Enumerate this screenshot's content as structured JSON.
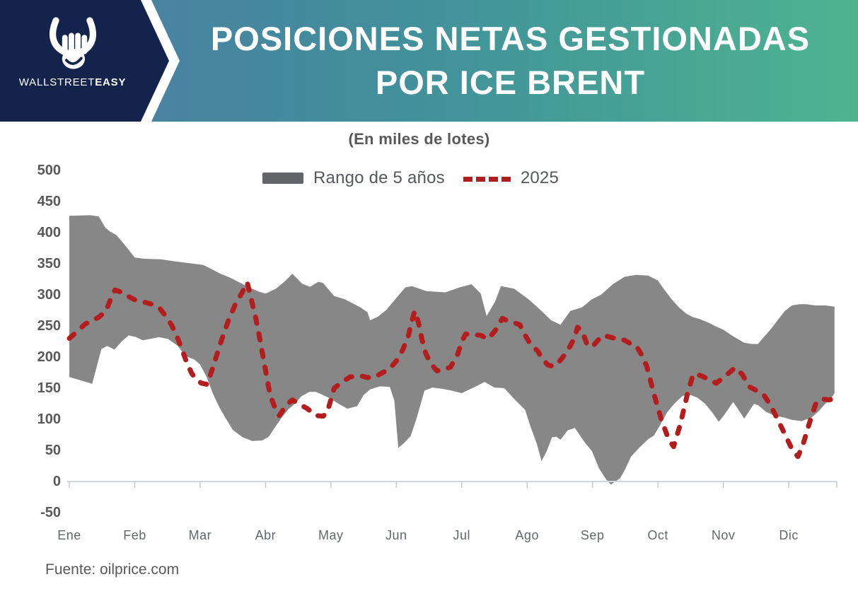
{
  "header": {
    "brand": {
      "name_regular": "WALLSTREET",
      "name_bold": "EASY"
    },
    "title_line1": "POSICIONES NETAS GESTIONADAS",
    "title_line2": "POR ICE BRENT",
    "colors": {
      "navy": "#13234c",
      "gradient_left": "#4e7ba3",
      "gradient_mid": "#41909b",
      "gradient_right": "#4db48f"
    }
  },
  "legend": {
    "range_label": "Rango de 5 años",
    "line_label": "2025"
  },
  "footer": {
    "source": "Fuente: oilprice.com"
  },
  "icons": {
    "bull-fist-logo": "bull horns over clenched fist",
    "chevron-banner": "navy chevron with white edge"
  },
  "chart_data": {
    "type": "area",
    "title": "POSICIONES NETAS GESTIONADAS POR ICE BRENT",
    "subtitle": "(En miles de lotes)",
    "x_categories": [
      "Ene",
      "Feb",
      "Mar",
      "Abr",
      "May",
      "Jun",
      "Jul",
      "Ago",
      "Sep",
      "Oct",
      "Nov",
      "Dic"
    ],
    "x_unit": "month index (0 = Ene tick, fractions = position within year)",
    "ylim": [
      -50,
      500
    ],
    "yticks": [
      500,
      450,
      400,
      350,
      300,
      250,
      200,
      150,
      100,
      50,
      0,
      -50
    ],
    "grid": "zero-line-only",
    "legend_position": "top-center",
    "series": [
      {
        "name": "Rango de 5 años",
        "type": "band",
        "color": "#878787",
        "upper": [
          [
            0,
            427
          ],
          [
            0.32,
            428
          ],
          [
            0.45,
            426
          ],
          [
            0.55,
            408
          ],
          [
            0.62,
            402
          ],
          [
            0.72,
            396
          ],
          [
            0.85,
            380
          ],
          [
            1.0,
            360
          ],
          [
            1.15,
            358
          ],
          [
            1.4,
            357
          ],
          [
            1.6,
            354
          ],
          [
            1.9,
            350
          ],
          [
            2.05,
            348
          ],
          [
            2.2,
            340
          ],
          [
            2.31,
            334
          ],
          [
            2.45,
            328
          ],
          [
            2.6,
            320
          ],
          [
            2.75,
            312
          ],
          [
            2.9,
            305
          ],
          [
            3.0,
            302
          ],
          [
            3.16,
            310
          ],
          [
            3.3,
            322
          ],
          [
            3.41,
            334
          ],
          [
            3.56,
            318
          ],
          [
            3.68,
            313
          ],
          [
            3.81,
            321
          ],
          [
            3.88,
            319
          ],
          [
            4.05,
            298
          ],
          [
            4.21,
            293
          ],
          [
            4.45,
            280
          ],
          [
            4.56,
            272
          ],
          [
            4.6,
            259
          ],
          [
            4.72,
            265
          ],
          [
            4.85,
            276
          ],
          [
            5.0,
            295
          ],
          [
            5.14,
            312
          ],
          [
            5.24,
            314
          ],
          [
            5.46,
            306
          ],
          [
            5.75,
            304
          ],
          [
            5.97,
            312
          ],
          [
            6.15,
            317
          ],
          [
            6.29,
            302
          ],
          [
            6.38,
            266
          ],
          [
            6.51,
            289
          ],
          [
            6.6,
            314
          ],
          [
            6.8,
            310
          ],
          [
            7.02,
            293
          ],
          [
            7.16,
            280
          ],
          [
            7.37,
            259
          ],
          [
            7.51,
            252
          ],
          [
            7.66,
            274
          ],
          [
            7.84,
            280
          ],
          [
            7.99,
            293
          ],
          [
            8.13,
            300
          ],
          [
            8.31,
            317
          ],
          [
            8.49,
            329
          ],
          [
            8.67,
            332
          ],
          [
            8.85,
            331
          ],
          [
            9.0,
            323
          ],
          [
            9.1,
            308
          ],
          [
            9.21,
            293
          ],
          [
            9.32,
            280
          ],
          [
            9.43,
            270
          ],
          [
            9.54,
            264
          ],
          [
            9.64,
            261
          ],
          [
            9.78,
            255
          ],
          [
            9.89,
            249
          ],
          [
            10.0,
            244
          ],
          [
            10.11,
            236
          ],
          [
            10.22,
            229
          ],
          [
            10.32,
            223
          ],
          [
            10.43,
            221
          ],
          [
            10.53,
            221
          ],
          [
            10.62,
            232
          ],
          [
            10.72,
            244
          ],
          [
            10.83,
            259
          ],
          [
            10.94,
            274
          ],
          [
            11.05,
            283
          ],
          [
            11.16,
            285
          ],
          [
            11.26,
            285
          ],
          [
            11.41,
            283
          ],
          [
            11.56,
            283
          ],
          [
            11.7,
            281
          ]
        ],
        "lower": [
          [
            0,
            168
          ],
          [
            0.22,
            161
          ],
          [
            0.35,
            157
          ],
          [
            0.49,
            213
          ],
          [
            0.58,
            218
          ],
          [
            0.69,
            212
          ],
          [
            0.8,
            225
          ],
          [
            0.91,
            235
          ],
          [
            1.02,
            232
          ],
          [
            1.12,
            227
          ],
          [
            1.23,
            229
          ],
          [
            1.37,
            232
          ],
          [
            1.51,
            229
          ],
          [
            1.66,
            218
          ],
          [
            1.77,
            202
          ],
          [
            1.91,
            196
          ],
          [
            2.0,
            188
          ],
          [
            2.1,
            168
          ],
          [
            2.2,
            140
          ],
          [
            2.3,
            118
          ],
          [
            2.4,
            100
          ],
          [
            2.5,
            83
          ],
          [
            2.65,
            71
          ],
          [
            2.8,
            65
          ],
          [
            2.95,
            66
          ],
          [
            3.05,
            72
          ],
          [
            3.15,
            88
          ],
          [
            3.25,
            103
          ],
          [
            3.35,
            116
          ],
          [
            3.45,
            125
          ],
          [
            3.55,
            137
          ],
          [
            3.67,
            144
          ],
          [
            3.77,
            144
          ],
          [
            3.88,
            139
          ],
          [
            4.0,
            133
          ],
          [
            4.1,
            126
          ],
          [
            4.25,
            117
          ],
          [
            4.4,
            121
          ],
          [
            4.5,
            139
          ],
          [
            4.6,
            148
          ],
          [
            4.75,
            153
          ],
          [
            4.9,
            152
          ],
          [
            4.97,
            130
          ],
          [
            5.03,
            54
          ],
          [
            5.12,
            62
          ],
          [
            5.22,
            73
          ],
          [
            5.32,
            105
          ],
          [
            5.43,
            146
          ],
          [
            5.55,
            151
          ],
          [
            5.7,
            149
          ],
          [
            5.85,
            146
          ],
          [
            6.0,
            142
          ],
          [
            6.2,
            152
          ],
          [
            6.35,
            160
          ],
          [
            6.5,
            151
          ],
          [
            6.65,
            150
          ],
          [
            6.8,
            133
          ],
          [
            6.97,
            115
          ],
          [
            7.05,
            89
          ],
          [
            7.15,
            60
          ],
          [
            7.22,
            33
          ],
          [
            7.3,
            49
          ],
          [
            7.38,
            71
          ],
          [
            7.45,
            72
          ],
          [
            7.51,
            67
          ],
          [
            7.62,
            82
          ],
          [
            7.73,
            86
          ],
          [
            7.88,
            63
          ],
          [
            7.99,
            49
          ],
          [
            8.1,
            21
          ],
          [
            8.21,
            3
          ],
          [
            8.28,
            -5
          ],
          [
            8.42,
            5
          ],
          [
            8.49,
            18
          ],
          [
            8.59,
            40
          ],
          [
            8.72,
            55
          ],
          [
            8.85,
            68
          ],
          [
            8.94,
            74
          ],
          [
            9.03,
            90
          ],
          [
            9.14,
            111
          ],
          [
            9.25,
            125
          ],
          [
            9.37,
            137
          ],
          [
            9.47,
            140
          ],
          [
            9.6,
            135
          ],
          [
            9.72,
            125
          ],
          [
            9.83,
            111
          ],
          [
            9.93,
            96
          ],
          [
            10.0,
            105
          ],
          [
            10.08,
            117
          ],
          [
            10.15,
            128
          ],
          [
            10.22,
            117
          ],
          [
            10.32,
            101
          ],
          [
            10.4,
            114
          ],
          [
            10.47,
            125
          ],
          [
            10.54,
            122
          ],
          [
            10.65,
            112
          ],
          [
            10.78,
            106
          ],
          [
            10.92,
            103
          ],
          [
            11.05,
            99
          ],
          [
            11.2,
            97
          ],
          [
            11.35,
            103
          ],
          [
            11.45,
            112
          ],
          [
            11.56,
            125
          ],
          [
            11.64,
            132
          ],
          [
            11.7,
            142
          ]
        ]
      },
      {
        "name": "2025",
        "type": "line",
        "style": "dashed",
        "color": "#b41d1d",
        "points": [
          [
            0,
            230
          ],
          [
            0.13,
            242
          ],
          [
            0.24,
            253
          ],
          [
            0.35,
            259
          ],
          [
            0.45,
            264
          ],
          [
            0.56,
            274
          ],
          [
            0.65,
            298
          ],
          [
            0.7,
            308
          ],
          [
            0.8,
            304
          ],
          [
            0.91,
            297
          ],
          [
            1.02,
            291
          ],
          [
            1.12,
            289
          ],
          [
            1.26,
            285
          ],
          [
            1.37,
            280
          ],
          [
            1.48,
            265
          ],
          [
            1.56,
            252
          ],
          [
            1.64,
            235
          ],
          [
            1.72,
            213
          ],
          [
            1.79,
            193
          ],
          [
            1.87,
            174
          ],
          [
            1.95,
            163
          ],
          [
            2.02,
            158
          ],
          [
            2.11,
            156
          ],
          [
            2.2,
            185
          ],
          [
            2.32,
            225
          ],
          [
            2.43,
            258
          ],
          [
            2.54,
            285
          ],
          [
            2.65,
            305
          ],
          [
            2.72,
            320
          ],
          [
            2.85,
            263
          ],
          [
            2.92,
            225
          ],
          [
            2.99,
            184
          ],
          [
            3.07,
            139
          ],
          [
            3.16,
            114
          ],
          [
            3.21,
            106
          ],
          [
            3.32,
            123
          ],
          [
            3.41,
            131
          ],
          [
            3.51,
            125
          ],
          [
            3.64,
            117
          ],
          [
            3.77,
            106
          ],
          [
            3.88,
            105
          ],
          [
            3.94,
            110
          ],
          [
            4.05,
            150
          ],
          [
            4.16,
            159
          ],
          [
            4.29,
            168
          ],
          [
            4.45,
            170
          ],
          [
            4.56,
            167
          ],
          [
            4.67,
            168
          ],
          [
            4.81,
            176
          ],
          [
            4.92,
            184
          ],
          [
            5.02,
            196
          ],
          [
            5.1,
            212
          ],
          [
            5.18,
            232
          ],
          [
            5.23,
            255
          ],
          [
            5.28,
            274
          ],
          [
            5.34,
            255
          ],
          [
            5.39,
            229
          ],
          [
            5.45,
            206
          ],
          [
            5.5,
            195
          ],
          [
            5.57,
            184
          ],
          [
            5.62,
            178
          ],
          [
            5.73,
            180
          ],
          [
            5.83,
            184
          ],
          [
            5.94,
            205
          ],
          [
            6.0,
            225
          ],
          [
            6.06,
            237
          ],
          [
            6.18,
            236
          ],
          [
            6.29,
            235
          ],
          [
            6.4,
            229
          ],
          [
            6.51,
            242
          ],
          [
            6.62,
            262
          ],
          [
            6.69,
            259
          ],
          [
            6.8,
            255
          ],
          [
            6.89,
            252
          ],
          [
            6.94,
            240
          ],
          [
            7.05,
            221
          ],
          [
            7.16,
            210
          ],
          [
            7.24,
            196
          ],
          [
            7.32,
            187
          ],
          [
            7.41,
            185
          ],
          [
            7.51,
            195
          ],
          [
            7.62,
            210
          ],
          [
            7.73,
            232
          ],
          [
            7.77,
            248
          ],
          [
            7.84,
            242
          ],
          [
            7.91,
            222
          ],
          [
            7.99,
            216
          ],
          [
            8.1,
            229
          ],
          [
            8.16,
            235
          ],
          [
            8.27,
            232
          ],
          [
            8.38,
            229
          ],
          [
            8.49,
            227
          ],
          [
            8.59,
            221
          ],
          [
            8.67,
            218
          ],
          [
            8.76,
            202
          ],
          [
            8.83,
            185
          ],
          [
            8.94,
            140
          ],
          [
            9.05,
            100
          ],
          [
            9.16,
            69
          ],
          [
            9.24,
            56
          ],
          [
            9.34,
            91
          ],
          [
            9.45,
            140
          ],
          [
            9.54,
            173
          ],
          [
            9.66,
            170
          ],
          [
            9.78,
            164
          ],
          [
            9.89,
            158
          ],
          [
            9.99,
            166
          ],
          [
            10.08,
            174
          ],
          [
            10.18,
            183
          ],
          [
            10.29,
            172
          ],
          [
            10.4,
            152
          ],
          [
            10.51,
            146
          ],
          [
            10.62,
            139
          ],
          [
            10.72,
            123
          ],
          [
            10.83,
            100
          ],
          [
            10.94,
            76
          ],
          [
            11.05,
            52
          ],
          [
            11.14,
            40
          ],
          [
            11.22,
            60
          ],
          [
            11.32,
            95
          ],
          [
            11.41,
            124
          ],
          [
            11.5,
            133
          ],
          [
            11.61,
            131
          ],
          [
            11.7,
            133
          ]
        ]
      }
    ]
  }
}
